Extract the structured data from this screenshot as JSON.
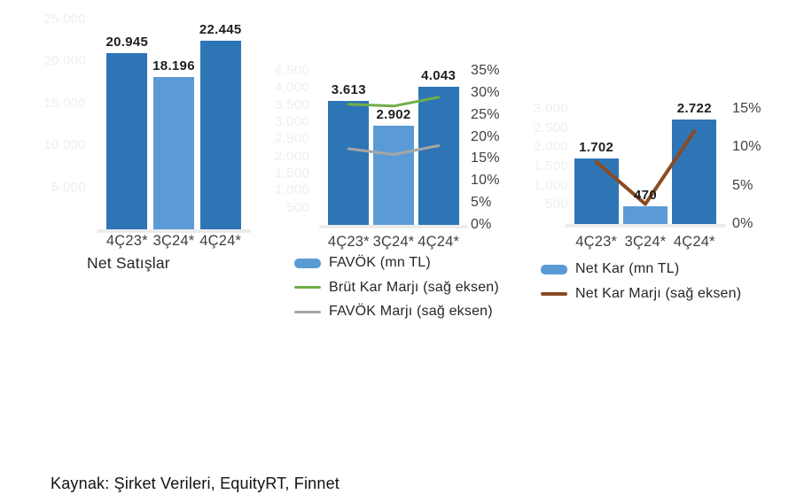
{
  "source_note": "Kaynak: Şirket Verileri, EquityRT, Finnet",
  "colors": {
    "bar_primary": "#2E75B6",
    "bar_highlight": "#5B9BD5",
    "legend_bar_swatch": "#5B9BD5",
    "green_line": "#70AD47",
    "gray_line": "#A6A6A6",
    "brown_line": "#8B4A21",
    "axis_text": "#404040",
    "value_label_text": "#1F1F1F",
    "faint_axis_text": "#ECEFF2",
    "baseline": "#ECECEC"
  },
  "chart_data": [
    {
      "type": "bar",
      "title": "Net Satışlar",
      "categories": [
        "4Ç23*",
        "3Ç24*",
        "4Ç24*"
      ],
      "series": [
        {
          "name": "Net Satışlar",
          "kind": "bar",
          "values": [
            20945,
            18196,
            22445
          ],
          "value_labels": [
            "20.945",
            "18.196",
            "22.445"
          ],
          "color_roles": [
            "primary",
            "highlight",
            "primary"
          ]
        }
      ],
      "ylim": [
        0,
        25000
      ],
      "left_axis_ticks": [
        {
          "label": "25.000",
          "value": 25000
        },
        {
          "label": "20.000",
          "value": 20000
        },
        {
          "label": "15.000",
          "value": 15000
        },
        {
          "label": "10.000",
          "value": 10000
        },
        {
          "label": "5.000",
          "value": 5000
        }
      ],
      "grid": false,
      "legend_position": "bottom",
      "legend": []
    },
    {
      "type": "bar",
      "title": "",
      "categories": [
        "4Ç23*",
        "3Ç24*",
        "4Ç24*"
      ],
      "series": [
        {
          "name": "FAVÖK (mn TL)",
          "kind": "bar",
          "values": [
            3613,
            2902,
            4043
          ],
          "value_labels": [
            "3.613",
            "2.902",
            "4.043"
          ],
          "color_roles": [
            "primary",
            "highlight",
            "primary"
          ]
        },
        {
          "name": "Brüt Kar Marjı (sağ eksen)",
          "kind": "line",
          "axis": "right",
          "values": [
            27.4,
            27.0,
            29.0
          ],
          "color": "green_line"
        },
        {
          "name": "FAVÖK Marjı (sağ eksen)",
          "kind": "line",
          "axis": "right",
          "values": [
            17.3,
            16.0,
            18.0
          ],
          "color": "gray_line"
        }
      ],
      "ylim": [
        0,
        4500
      ],
      "right_ylim": [
        0,
        35
      ],
      "left_axis_ticks": [
        {
          "label": "4.500",
          "value": 4500
        },
        {
          "label": "4.000",
          "value": 4000
        },
        {
          "label": "3.500",
          "value": 3500
        },
        {
          "label": "3.000",
          "value": 3000
        },
        {
          "label": "2.500",
          "value": 2500
        },
        {
          "label": "2.000",
          "value": 2000
        },
        {
          "label": "1.500",
          "value": 1500
        },
        {
          "label": "1.000",
          "value": 1000
        },
        {
          "label": "500",
          "value": 500
        }
      ],
      "right_axis_ticks": [
        {
          "label": "35%",
          "value": 35
        },
        {
          "label": "30%",
          "value": 30
        },
        {
          "label": "25%",
          "value": 25
        },
        {
          "label": "20%",
          "value": 20
        },
        {
          "label": "15%",
          "value": 15
        },
        {
          "label": "10%",
          "value": 10
        },
        {
          "label": "5%",
          "value": 5
        },
        {
          "label": "0%",
          "value": 0
        }
      ],
      "grid": false,
      "legend_position": "bottom",
      "legend": [
        {
          "swatch": "bar",
          "label": "FAVÖK (mn TL)"
        },
        {
          "swatch": "line",
          "color": "green_line",
          "label": "Brüt Kar Marjı (sağ eksen)"
        },
        {
          "swatch": "line",
          "color": "gray_line",
          "label": "FAVÖK Marjı (sağ eksen)"
        }
      ]
    },
    {
      "type": "bar",
      "title": "",
      "categories": [
        "4Ç23*",
        "3Ç24*",
        "4Ç24*"
      ],
      "series": [
        {
          "name": "Net Kar (mn TL)",
          "kind": "bar",
          "values": [
            1702,
            470,
            2722
          ],
          "value_labels": [
            "1.702",
            "470",
            "2.722"
          ],
          "color_roles": [
            "primary",
            "highlight",
            "primary"
          ]
        },
        {
          "name": "Net Kar Marjı (sağ eksen)",
          "kind": "line",
          "axis": "right",
          "values": [
            8.1,
            2.6,
            12.1
          ],
          "color": "brown_line"
        }
      ],
      "ylim": [
        0,
        3000
      ],
      "right_ylim": [
        0,
        15
      ],
      "left_axis_ticks": [
        {
          "label": "3.000",
          "value": 3000
        },
        {
          "label": "2.500",
          "value": 2500
        },
        {
          "label": "2.000",
          "value": 2000
        },
        {
          "label": "1.500",
          "value": 1500
        },
        {
          "label": "1.000",
          "value": 1000
        },
        {
          "label": "500",
          "value": 500
        }
      ],
      "right_axis_ticks": [
        {
          "label": "15%",
          "value": 15
        },
        {
          "label": "10%",
          "value": 10
        },
        {
          "label": "5%",
          "value": 5
        },
        {
          "label": "0%",
          "value": 0
        }
      ],
      "grid": false,
      "legend_position": "bottom",
      "legend": [
        {
          "swatch": "bar",
          "label": "Net Kar (mn TL)"
        },
        {
          "swatch": "line",
          "color": "brown_line",
          "label": "Net Kar Marjı (sağ eksen)"
        }
      ]
    }
  ]
}
